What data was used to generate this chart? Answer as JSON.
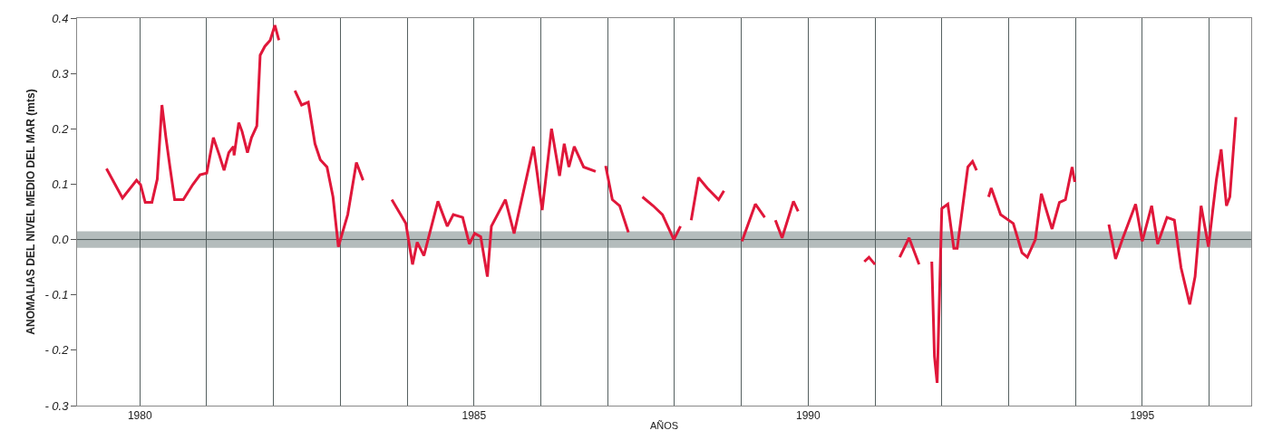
{
  "chart_data": {
    "type": "line",
    "xlabel": "AÑOS",
    "ylabel": "ANOMALIAS DEL NIVEL MEDIO DEL MAR (mts)",
    "xlim": [
      1979.06,
      1996.63
    ],
    "xticks": [
      {
        "value": 1980,
        "label": "1980"
      },
      {
        "value": 1981,
        "label": null
      },
      {
        "value": 1982,
        "label": null
      },
      {
        "value": 1983,
        "label": null
      },
      {
        "value": 1984,
        "label": null
      },
      {
        "value": 1985,
        "label": "1985"
      },
      {
        "value": 1986,
        "label": null
      },
      {
        "value": 1987,
        "label": null
      },
      {
        "value": 1988,
        "label": null
      },
      {
        "value": 1989,
        "label": null
      },
      {
        "value": 1990,
        "label": "1990"
      },
      {
        "value": 1991,
        "label": null
      },
      {
        "value": 1992,
        "label": null
      },
      {
        "value": 1993,
        "label": null
      },
      {
        "value": 1994,
        "label": null
      },
      {
        "value": 1995,
        "label": "1995"
      },
      {
        "value": 1996,
        "label": null
      }
    ],
    "ylim": [
      -0.3,
      0.4
    ],
    "yticks": [
      {
        "value": -0.3,
        "label": "- 0.3"
      },
      {
        "value": -0.2,
        "label": "- 0.2"
      },
      {
        "value": -0.1,
        "label": "- 0.1"
      },
      {
        "value": 0,
        "label": "0.0"
      },
      0.1,
      0.2,
      0.3,
      0.4
    ],
    "grid": "x",
    "marker": "none",
    "line_style": "solid",
    "bands": [
      {
        "axis": "y",
        "from": -0.015,
        "to": 0.015,
        "color": "#b4bcbc"
      }
    ],
    "ref_lines": [
      {
        "axis": "y",
        "value": 0,
        "color": "#4a5555"
      }
    ],
    "series": [
      {
        "color": "#e0173a",
        "x": [
          1979.5,
          1979.74,
          1979.95,
          1980.01,
          1980.08,
          1980.18,
          1980.26,
          1980.33,
          1980.39,
          1980.45,
          1980.52,
          1980.65,
          1980.79,
          1980.9,
          1981.0,
          1981.1,
          1981.19,
          1981.26,
          1981.33,
          1981.4,
          1981.41,
          1981.48,
          1981.53,
          1981.61,
          1981.67,
          1981.75,
          1981.8,
          1981.87,
          1981.95,
          1982.02,
          1982.08,
          1982.2,
          1982.32,
          1982.42,
          1982.52,
          1982.62,
          1982.7,
          1982.8,
          1982.89,
          1982.97,
          1983.11,
          1983.24,
          1983.34,
          1983.55,
          1983.77,
          1983.98,
          1984.08,
          1984.15,
          1984.25,
          1984.46,
          1984.6,
          1984.69,
          1984.83,
          1984.93,
          1985.01,
          1985.1,
          1985.2,
          1985.26,
          1985.47,
          1985.6,
          1985.89,
          1986.02,
          1986.16,
          1986.28,
          1986.35,
          1986.42,
          1986.5,
          1986.64,
          1986.82,
          1986.9,
          1986.97,
          1987.07,
          1987.18,
          1987.31,
          1987.4,
          1987.52,
          1987.68,
          1987.82,
          1987.99,
          1988.09,
          1988.17,
          1988.25,
          1988.36,
          1988.49,
          1988.66,
          1988.74,
          1988.9,
          1989.01,
          1989.21,
          1989.35,
          1989.43,
          1989.51,
          1989.61,
          1989.78,
          1989.85,
          1990.3,
          1990.84,
          1990.91,
          1991.0,
          1991.2,
          1991.37,
          1991.51,
          1991.66,
          1991.75,
          1991.85,
          1991.89,
          1991.93,
          1992.0,
          1992.09,
          1992.18,
          1992.23,
          1992.39,
          1992.46,
          1992.52,
          1992.6,
          1992.7,
          1992.74,
          1992.88,
          1993.07,
          1993.2,
          1993.28,
          1993.4,
          1993.49,
          1993.65,
          1993.76,
          1993.85,
          1993.95,
          1993.99,
          1994.2,
          1994.5,
          1994.6,
          1994.71,
          1994.9,
          1995.0,
          1995.14,
          1995.23,
          1995.37,
          1995.48,
          1995.58,
          1995.71,
          1995.79,
          1995.88,
          1995.99,
          1996.11,
          1996.18,
          1996.26,
          1996.31,
          1996.4
        ],
        "values": [
          0.128,
          0.075,
          0.107,
          0.099,
          0.067,
          0.067,
          0.109,
          0.243,
          0.184,
          0.131,
          0.072,
          0.072,
          0.099,
          0.117,
          0.12,
          0.184,
          0.152,
          0.125,
          0.157,
          0.168,
          0.152,
          0.211,
          0.195,
          0.157,
          0.184,
          0.205,
          0.333,
          0.349,
          0.36,
          0.387,
          0.36,
          null,
          0.269,
          0.243,
          0.248,
          0.173,
          0.144,
          0.131,
          0.077,
          -0.013,
          0.045,
          0.139,
          0.107,
          null,
          0.072,
          0.029,
          -0.045,
          -0.005,
          -0.029,
          0.069,
          0.024,
          0.045,
          0.04,
          -0.008,
          0.011,
          0.005,
          -0.067,
          0.024,
          0.072,
          0.011,
          0.168,
          0.053,
          0.2,
          0.115,
          0.173,
          0.131,
          0.168,
          0.131,
          0.123,
          null,
          0.133,
          0.072,
          0.061,
          0.013,
          null,
          0.077,
          0.061,
          0.045,
          0.0,
          0.024,
          null,
          0.035,
          0.112,
          0.093,
          0.072,
          0.088,
          null,
          -0.003,
          0.064,
          0.04,
          null,
          0.035,
          0.003,
          0.069,
          0.051,
          null,
          -0.04,
          -0.032,
          -0.045,
          null,
          -0.032,
          0.003,
          -0.045,
          null,
          -0.04,
          -0.211,
          -0.259,
          0.056,
          0.064,
          -0.016,
          -0.016,
          0.131,
          0.141,
          0.125,
          null,
          0.077,
          0.093,
          0.045,
          0.029,
          -0.024,
          -0.032,
          0.0,
          0.083,
          0.019,
          0.067,
          0.072,
          0.131,
          0.104,
          null,
          0.027,
          -0.035,
          0.003,
          0.064,
          -0.003,
          0.061,
          -0.008,
          0.04,
          0.035,
          -0.051,
          -0.117,
          -0.067,
          0.061,
          -0.013,
          0.109,
          0.163,
          0.061,
          0.077,
          0.221
        ]
      }
    ]
  }
}
